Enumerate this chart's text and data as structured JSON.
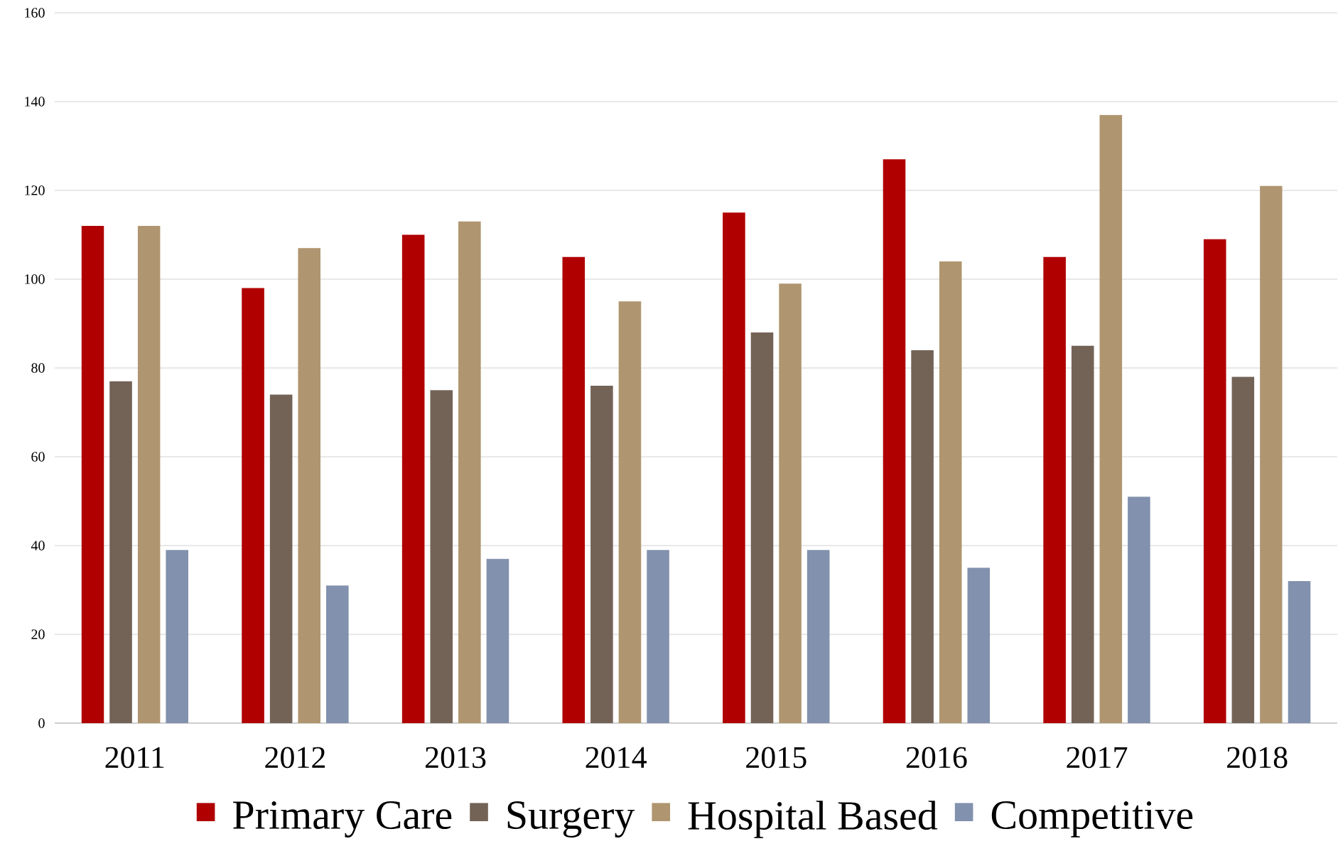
{
  "chart_data": {
    "type": "bar",
    "categories": [
      "2011",
      "2012",
      "2013",
      "2014",
      "2015",
      "2016",
      "2017",
      "2018"
    ],
    "series": [
      {
        "name": "Primary Care",
        "color": "#b00000",
        "values": [
          112,
          98,
          110,
          105,
          115,
          127,
          105,
          109
        ]
      },
      {
        "name": "Surgery",
        "color": "#736357",
        "values": [
          77,
          74,
          75,
          76,
          88,
          84,
          85,
          78
        ]
      },
      {
        "name": "Hospital Based",
        "color": "#af9670",
        "values": [
          112,
          107,
          113,
          95,
          99,
          104,
          137,
          121
        ]
      },
      {
        "name": "Competitive",
        "color": "#8291ad",
        "values": [
          39,
          31,
          37,
          39,
          39,
          35,
          51,
          32
        ]
      }
    ],
    "ylim": [
      0,
      160
    ],
    "yticks": [
      0,
      20,
      40,
      60,
      80,
      100,
      120,
      140,
      160
    ],
    "grid": "y",
    "legend": "bottom"
  }
}
